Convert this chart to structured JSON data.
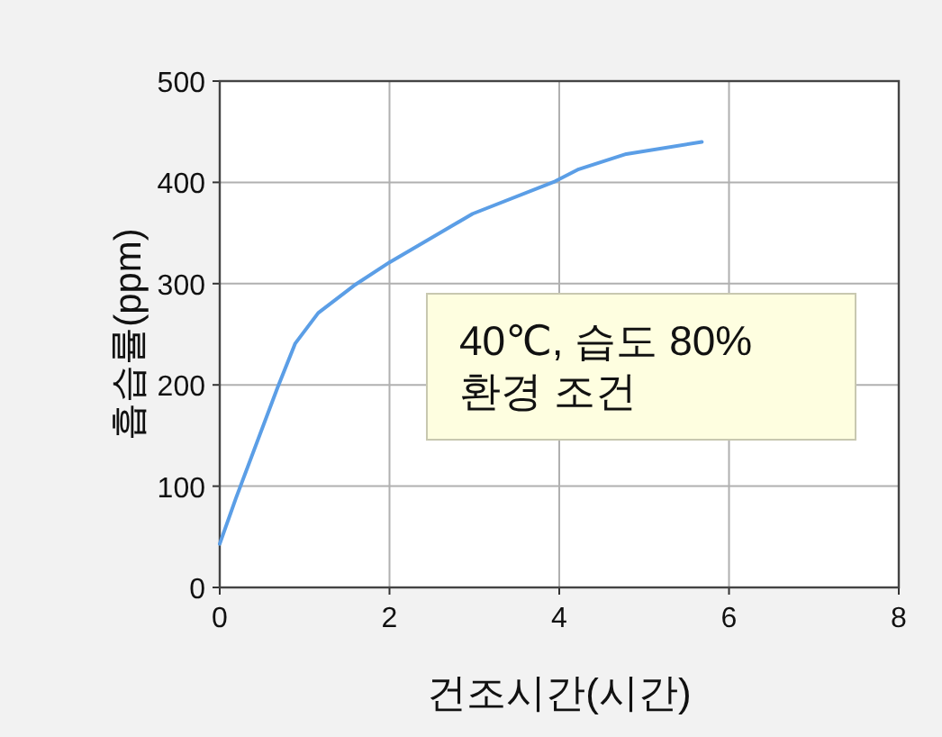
{
  "chart_data": {
    "type": "line",
    "xlabel": "건조시간(시간)",
    "ylabel": "흡습률(ppm)",
    "x": [
      0,
      0.19,
      0.68,
      0.89,
      1.16,
      1.58,
      2.0,
      2.98,
      3.95,
      4.23,
      4.79,
      5.68
    ],
    "series": [
      {
        "color": "#5b9ee6",
        "values": [
          43,
          88,
          197,
          241,
          271,
          298,
          321,
          369,
          401,
          413,
          428,
          440
        ]
      }
    ],
    "xlim": [
      0,
      8
    ],
    "ylim": [
      0,
      500
    ],
    "xticks": [
      0,
      2,
      4,
      6,
      8
    ],
    "yticks": [
      0,
      100,
      200,
      300,
      400,
      500
    ],
    "grid": true,
    "marker": "none",
    "line_style": "solid",
    "annotations": [
      "40℃, 습도 80%\n환경 조건"
    ]
  }
}
